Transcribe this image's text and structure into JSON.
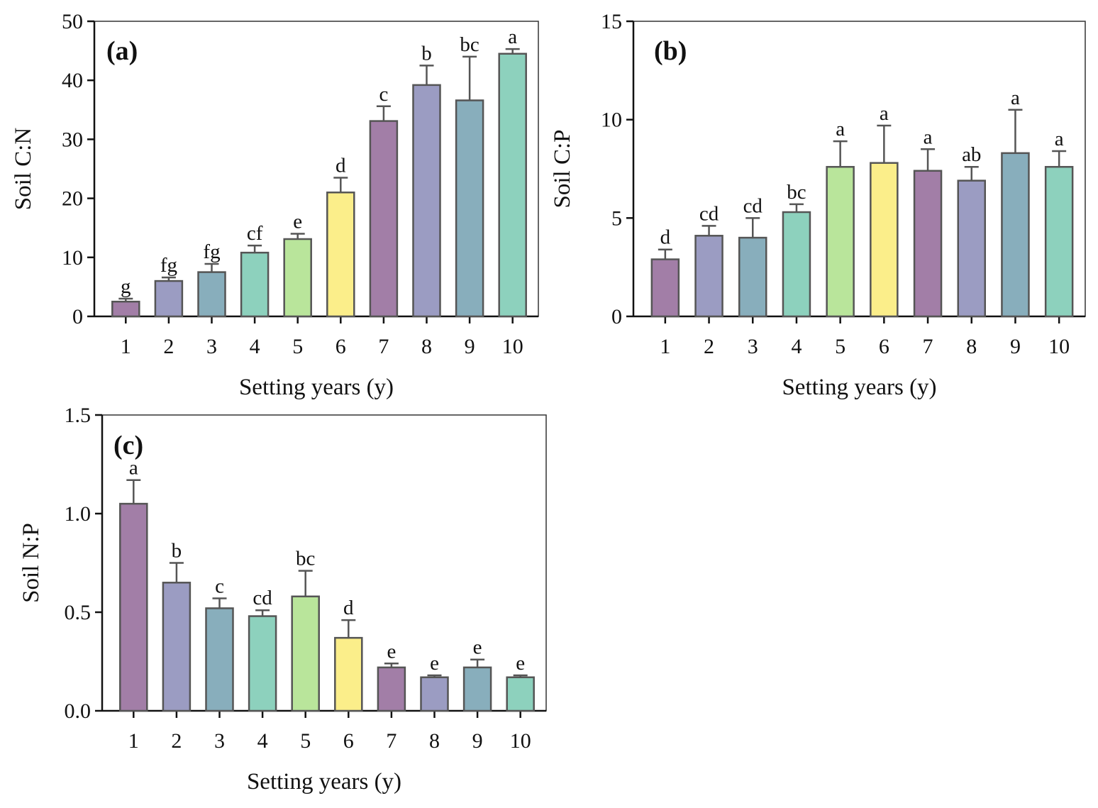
{
  "figure": {
    "colors": [
      "#a27ea7",
      "#9b9cc2",
      "#88aebc",
      "#8dd1bd",
      "#b9e59b",
      "#fbee8a"
    ],
    "edge_color": "#555555"
  },
  "chart_data": [
    {
      "type": "bar",
      "panel_label": "(a)",
      "categories": [
        "1",
        "2",
        "3",
        "4",
        "5",
        "6",
        "7",
        "8",
        "9",
        "10"
      ],
      "values": [
        2.5,
        6.0,
        7.5,
        10.8,
        13.1,
        21.0,
        33.1,
        39.2,
        36.6,
        44.5
      ],
      "errors": [
        0.5,
        0.6,
        1.4,
        1.2,
        0.9,
        2.5,
        2.5,
        3.3,
        7.4,
        0.8
      ],
      "significance": [
        "g",
        "fg",
        "fg",
        "cf",
        "e",
        "d",
        "c",
        "b",
        "bc",
        "a"
      ],
      "colors": [
        "#a27ea7",
        "#9b9cc2",
        "#88aebc",
        "#8dd1bd",
        "#b9e59b",
        "#fbee8a",
        "#a27ea7",
        "#9b9cc2",
        "#88aebc",
        "#8dd1bd"
      ],
      "xlabel": "Setting years (y)",
      "ylabel": "Soil C:N",
      "ylim": [
        0,
        50
      ],
      "yticks": [
        0,
        10,
        20,
        30,
        40,
        50
      ],
      "ytick_labels": [
        "0",
        "10",
        "20",
        "30",
        "40",
        "50"
      ]
    },
    {
      "type": "bar",
      "panel_label": "(b)",
      "categories": [
        "1",
        "2",
        "3",
        "4",
        "5",
        "6",
        "7",
        "8",
        "9",
        "10"
      ],
      "values": [
        2.9,
        4.1,
        4.0,
        5.3,
        7.6,
        7.8,
        7.4,
        6.9,
        8.3,
        7.6
      ],
      "errors": [
        0.5,
        0.5,
        1.0,
        0.4,
        1.3,
        1.9,
        1.1,
        0.7,
        2.2,
        0.8
      ],
      "significance": [
        "d",
        "cd",
        "cd",
        "bc",
        "a",
        "a",
        "a",
        "ab",
        "a",
        "a"
      ],
      "colors": [
        "#a27ea7",
        "#9b9cc2",
        "#88aebc",
        "#8dd1bd",
        "#b9e59b",
        "#fbee8a",
        "#a27ea7",
        "#9b9cc2",
        "#88aebc",
        "#8dd1bd"
      ],
      "xlabel": "Setting years (y)",
      "ylabel": "Soil C:P",
      "ylim": [
        0,
        15
      ],
      "yticks": [
        0,
        5,
        10,
        15
      ],
      "ytick_labels": [
        "0",
        "5",
        "10",
        "15"
      ]
    },
    {
      "type": "bar",
      "panel_label": "(c)",
      "categories": [
        "1",
        "2",
        "3",
        "4",
        "5",
        "6",
        "7",
        "8",
        "9",
        "10"
      ],
      "values": [
        1.05,
        0.65,
        0.52,
        0.48,
        0.58,
        0.37,
        0.22,
        0.17,
        0.22,
        0.17
      ],
      "errors": [
        0.12,
        0.1,
        0.05,
        0.03,
        0.13,
        0.09,
        0.02,
        0.01,
        0.04,
        0.01
      ],
      "significance": [
        "a",
        "b",
        "c",
        "cd",
        "bc",
        "d",
        "e",
        "e",
        "e",
        "e"
      ],
      "colors": [
        "#a27ea7",
        "#9b9cc2",
        "#88aebc",
        "#8dd1bd",
        "#b9e59b",
        "#fbee8a",
        "#a27ea7",
        "#9b9cc2",
        "#88aebc",
        "#8dd1bd"
      ],
      "xlabel": "Setting years (y)",
      "ylabel": "Soil N:P",
      "ylim": [
        0,
        1.5
      ],
      "yticks": [
        0,
        0.5,
        1.0,
        1.5
      ],
      "ytick_labels": [
        "0.0",
        "0.5",
        "1.0",
        "1.5"
      ]
    }
  ]
}
